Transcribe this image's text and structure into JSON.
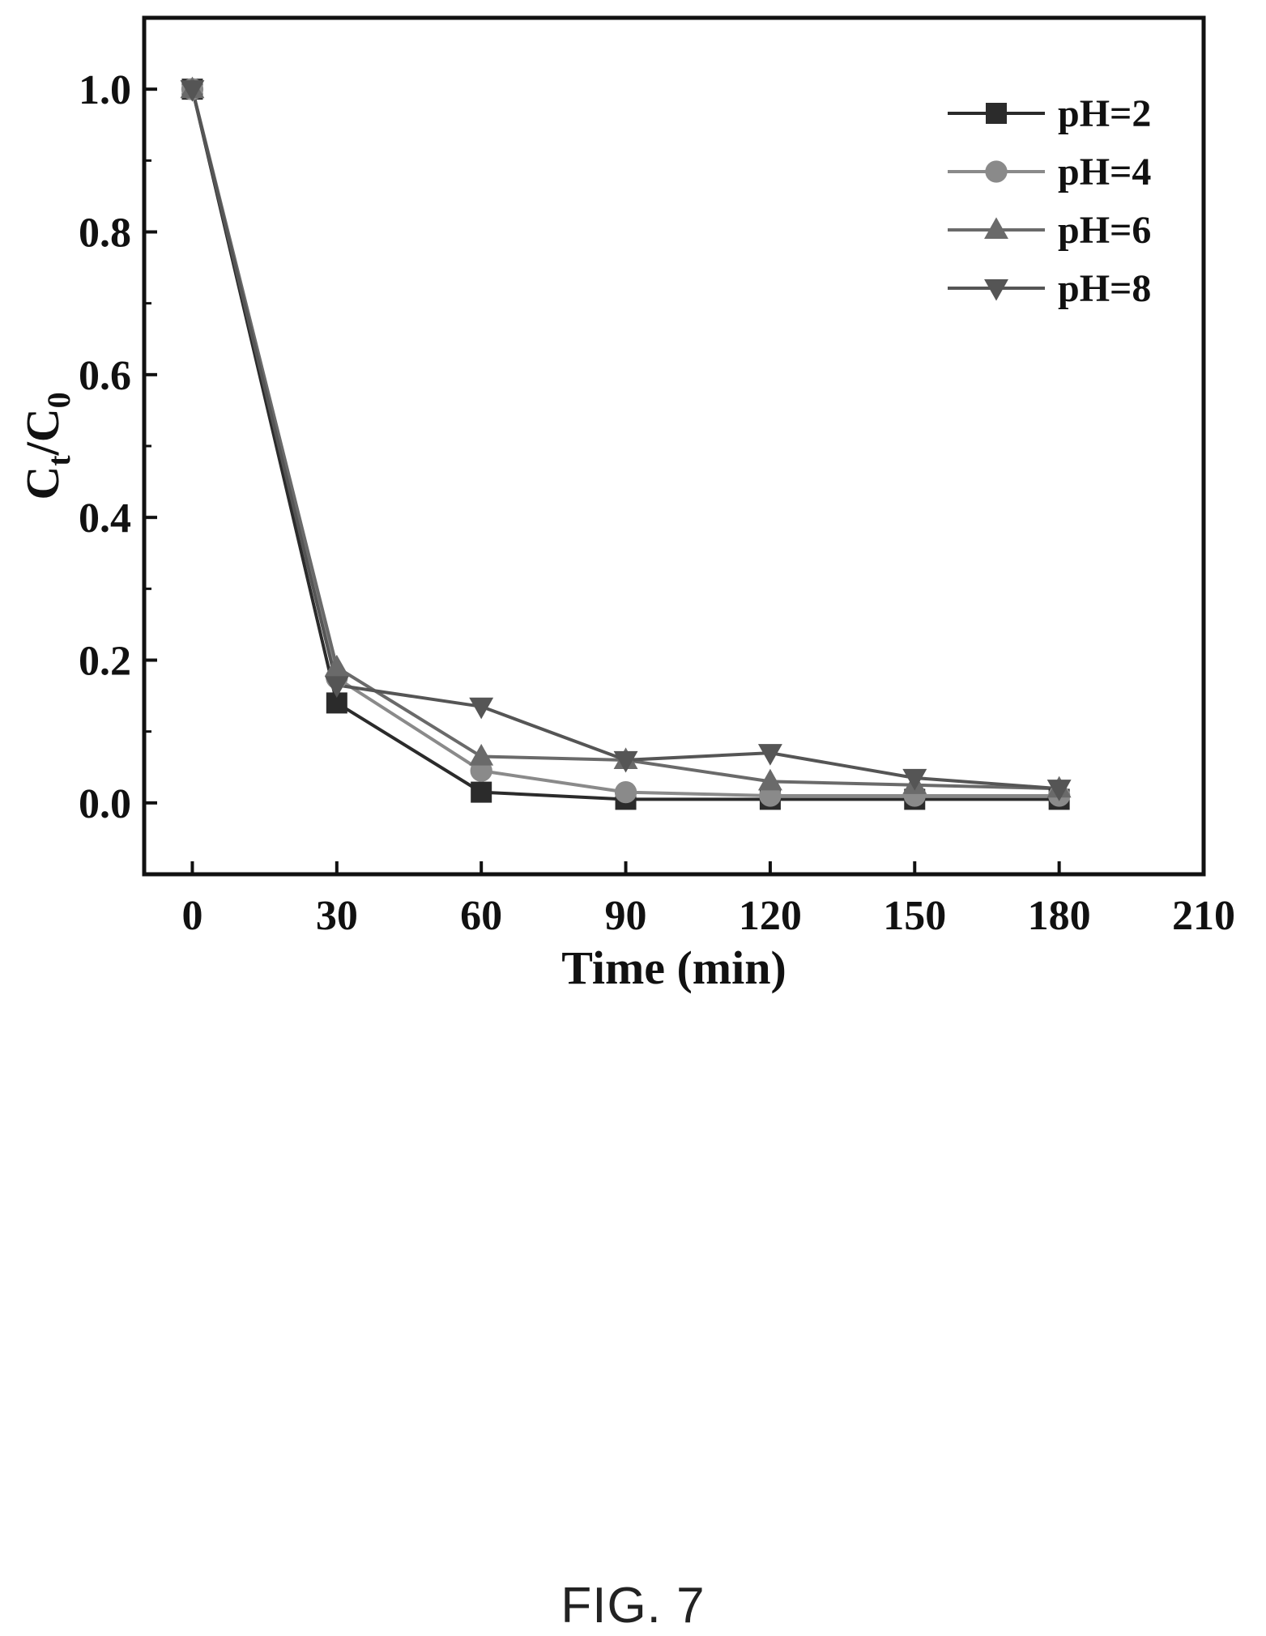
{
  "figure_caption": "FIG. 7",
  "chart_data": {
    "type": "line",
    "title": "",
    "xlabel": "Time (min)",
    "ylabel_main": "C",
    "ylabel_sub1": "t",
    "ylabel_sep": "/C",
    "ylabel_sub2": "0",
    "xlim": [
      -10,
      210
    ],
    "ylim": [
      -0.1,
      1.1
    ],
    "x_ticks": [
      0,
      30,
      60,
      90,
      120,
      150,
      180,
      210
    ],
    "y_ticks": [
      0.0,
      0.2,
      0.4,
      0.6,
      0.8,
      1.0
    ],
    "x_tick_labels": [
      "0",
      "30",
      "60",
      "90",
      "120",
      "150",
      "180",
      "210"
    ],
    "y_tick_labels": [
      "0.0",
      "0.2",
      "0.4",
      "0.6",
      "0.8",
      "1.0"
    ],
    "grid": false,
    "legend_position": "top-right",
    "x": [
      0,
      30,
      60,
      90,
      120,
      150,
      180
    ],
    "series": [
      {
        "name": "pH=2",
        "marker": "square",
        "color": "#2b2b2b",
        "values": [
          1.0,
          0.14,
          0.015,
          0.005,
          0.005,
          0.005,
          0.005
        ]
      },
      {
        "name": "pH=4",
        "marker": "circle",
        "color": "#8a8a8a",
        "values": [
          1.0,
          0.175,
          0.045,
          0.015,
          0.01,
          0.01,
          0.01
        ]
      },
      {
        "name": "pH=6",
        "marker": "triangle-up",
        "color": "#6a6a6a",
        "values": [
          1.0,
          0.19,
          0.065,
          0.06,
          0.03,
          0.025,
          0.02
        ]
      },
      {
        "name": "pH=8",
        "marker": "triangle-down",
        "color": "#555555",
        "values": [
          1.0,
          0.165,
          0.135,
          0.06,
          0.07,
          0.035,
          0.02
        ]
      }
    ]
  }
}
